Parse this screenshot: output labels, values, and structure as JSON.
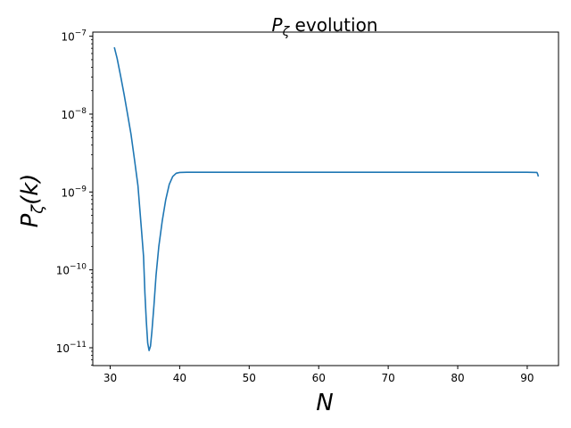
{
  "chart_data": {
    "type": "line",
    "title": {
      "base": "P",
      "sub": "ζ",
      "rest": " evolution"
    },
    "xlabel": "N",
    "ylabel": {
      "base": "P",
      "sub": "ζ",
      "rest": "(k)"
    },
    "xscale": "linear",
    "yscale": "log",
    "xlim": [
      27.5,
      94.5
    ],
    "ylim": [
      5.9e-12,
      1.13e-07
    ],
    "grid": false,
    "xticks": [
      30,
      40,
      50,
      60,
      70,
      80,
      90
    ],
    "yticks": [
      {
        "value": 1e-11,
        "mant": "10",
        "exp": "−11"
      },
      {
        "value": 1e-10,
        "mant": "10",
        "exp": "−10"
      },
      {
        "value": 1e-09,
        "mant": "10",
        "exp": "−9"
      },
      {
        "value": 1e-08,
        "mant": "10",
        "exp": "−8"
      },
      {
        "value": 1e-07,
        "mant": "10",
        "exp": "−7"
      }
    ],
    "line_color": "#1f77b4",
    "series": [
      {
        "x": [
          30.6,
          31.0,
          31.5,
          32.0,
          32.5,
          33.0,
          33.5,
          34.0,
          34.5,
          34.8,
          35.0,
          35.2,
          35.4,
          35.6,
          35.8,
          36.0,
          36.3,
          36.6,
          37.0,
          37.5,
          38.0,
          38.5,
          39.0,
          39.5,
          40.0,
          41.0,
          45.0,
          50.0,
          60.0,
          70.0,
          80.0,
          90.0,
          91.4,
          91.5,
          91.6
        ],
        "y": [
          7.2e-08,
          5.2e-08,
          3.1e-08,
          1.8e-08,
          1e-08,
          5.5e-09,
          2.6e-09,
          1.2e-09,
          3.3e-10,
          1.5e-10,
          5e-11,
          2.2e-11,
          1.15e-11,
          9.2e-12,
          1.05e-11,
          1.6e-11,
          3.5e-11,
          8.5e-11,
          2e-10,
          4.3e-10,
          8e-10,
          1.25e-09,
          1.58e-09,
          1.74e-09,
          1.78e-09,
          1.79e-09,
          1.79e-09,
          1.79e-09,
          1.79e-09,
          1.79e-09,
          1.79e-09,
          1.79e-09,
          1.78e-09,
          1.7e-09,
          1.58e-09
        ]
      }
    ]
  }
}
